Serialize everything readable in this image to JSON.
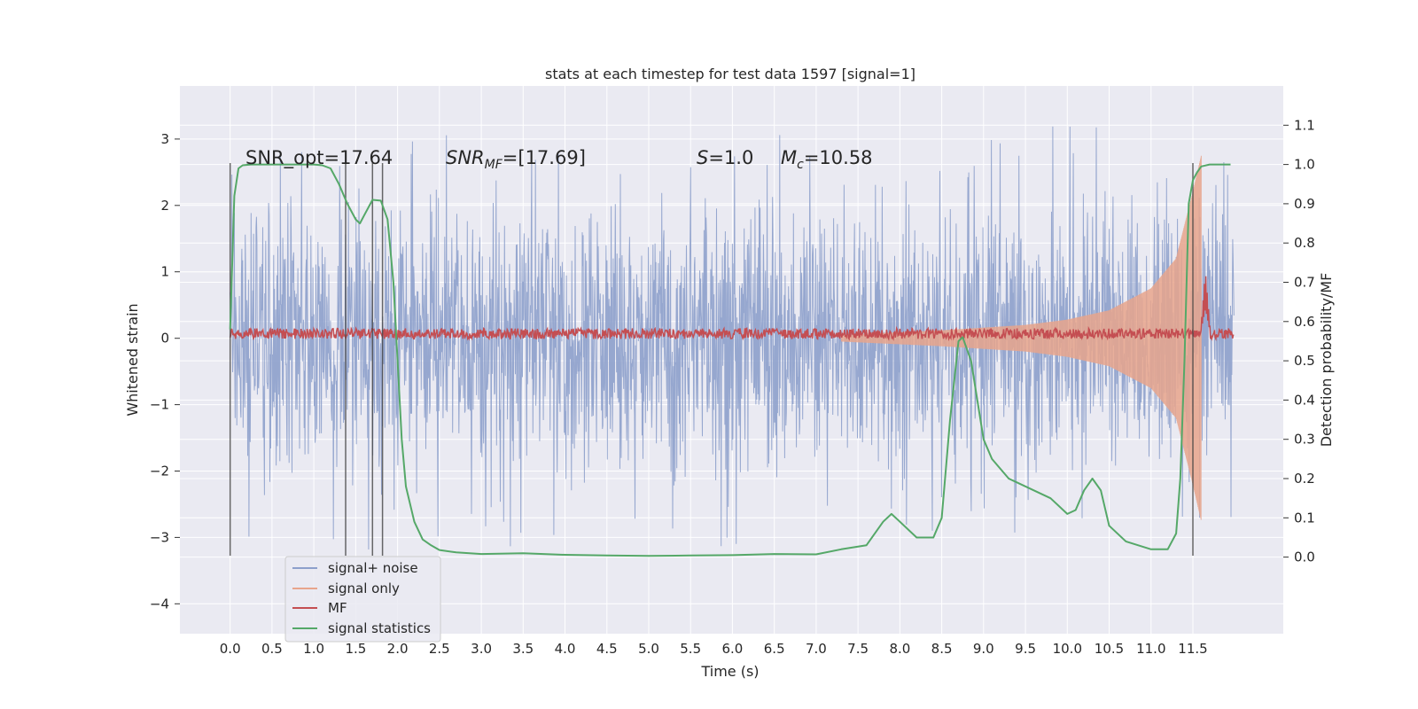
{
  "chart_data": {
    "type": "line",
    "title": "stats at each timestep for test data 1597 [signal=1]",
    "xlabel": "Time (s)",
    "ylabel_left": "Whitened strain",
    "ylabel_right": "Detection probability/MF",
    "xlim": [
      -0.6,
      12.58
    ],
    "ylim_left": [
      -4.45,
      3.8
    ],
    "ylim_right": [
      -0.195,
      1.2
    ],
    "x_ticks": [
      "0.0",
      "0.5",
      "1.0",
      "1.5",
      "2.0",
      "2.5",
      "3.0",
      "3.5",
      "4.0",
      "4.5",
      "5.0",
      "5.5",
      "6.0",
      "6.5",
      "7.0",
      "7.5",
      "8.0",
      "8.5",
      "9.0",
      "9.5",
      "10.0",
      "10.5",
      "11.0",
      "11.5"
    ],
    "y_ticks_left": [
      "3",
      "2",
      "1",
      "0",
      "−1",
      "−2",
      "−3",
      "−4"
    ],
    "y_ticks_right": [
      "1.1",
      "1.0",
      "0.9",
      "0.8",
      "0.7",
      "0.6",
      "0.5",
      "0.4",
      "0.3",
      "0.2",
      "0.1",
      "0.0"
    ],
    "grid": true,
    "annotations": {
      "snr_opt": "SNR_opt=17.64",
      "snr_mf_base": "SNR",
      "snr_mf_sub": "MF",
      "snr_mf_value": "=[17.69]",
      "s_var": "S",
      "s_value": "=1.0",
      "mc_var": "M",
      "mc_sub": "c",
      "mc_value": "=10.58"
    },
    "legend": {
      "position": "lower-left",
      "entries": [
        {
          "label": "signal+ noise",
          "color": "#8da0cb"
        },
        {
          "label": "signal only",
          "color": "#e8a58c"
        },
        {
          "label": "MF",
          "color": "#c44e52"
        },
        {
          "label": "signal statistics",
          "color": "#55a868"
        }
      ]
    },
    "vertical_markers_x": [
      0.0,
      1.38,
      1.7,
      1.82,
      11.5
    ],
    "series": [
      {
        "name": "signal+ noise",
        "axis": "left",
        "color": "#8da0cb",
        "x_range": [
          0.0,
          11.99
        ],
        "typical_range": [
          -1.5,
          1.5
        ],
        "extremes": {
          "max": 3.45,
          "min": -4.08
        }
      },
      {
        "name": "signal only",
        "axis": "left",
        "color": "#e8a58c",
        "x_start": 7.3,
        "x_end": 11.6,
        "amplitude_x": [
          7.3,
          8.5,
          9.5,
          10.0,
          10.5,
          11.0,
          11.3,
          11.5,
          11.6
        ],
        "amplitude_y": [
          0.05,
          0.12,
          0.2,
          0.28,
          0.42,
          0.75,
          1.2,
          2.2,
          2.75
        ]
      },
      {
        "name": "MF",
        "axis": "left",
        "color": "#c44e52",
        "x_range": [
          0.0,
          11.99
        ],
        "level": 0.07,
        "band": 0.08,
        "peak": {
          "x": 11.65,
          "y": 1.0
        }
      },
      {
        "name": "signal statistics",
        "axis": "right",
        "color": "#55a868",
        "x": [
          0.0,
          0.05,
          0.1,
          0.15,
          0.25,
          0.5,
          0.8,
          1.0,
          1.1,
          1.2,
          1.3,
          1.4,
          1.5,
          1.55,
          1.6,
          1.7,
          1.8,
          1.88,
          1.95,
          2.0,
          2.05,
          2.1,
          2.2,
          2.3,
          2.4,
          2.5,
          2.7,
          3.0,
          3.5,
          4.0,
          4.5,
          5.0,
          5.5,
          6.0,
          6.5,
          7.0,
          7.3,
          7.6,
          7.8,
          7.9,
          8.0,
          8.2,
          8.4,
          8.5,
          8.6,
          8.7,
          8.75,
          8.85,
          9.0,
          9.1,
          9.3,
          9.6,
          9.8,
          10.0,
          10.1,
          10.2,
          10.3,
          10.4,
          10.5,
          10.7,
          11.0,
          11.2,
          11.3,
          11.35,
          11.4,
          11.45,
          11.5,
          11.55,
          11.6,
          11.7,
          11.8,
          11.95
        ],
        "y": [
          0.58,
          0.92,
          0.99,
          0.998,
          1.0,
          1.0,
          1.0,
          1.0,
          0.998,
          0.99,
          0.95,
          0.9,
          0.86,
          0.85,
          0.87,
          0.91,
          0.908,
          0.86,
          0.7,
          0.5,
          0.3,
          0.18,
          0.09,
          0.045,
          0.03,
          0.018,
          0.012,
          0.008,
          0.01,
          0.006,
          0.004,
          0.003,
          0.004,
          0.005,
          0.008,
          0.007,
          0.02,
          0.03,
          0.09,
          0.11,
          0.09,
          0.05,
          0.05,
          0.1,
          0.35,
          0.55,
          0.56,
          0.5,
          0.3,
          0.25,
          0.2,
          0.17,
          0.15,
          0.11,
          0.12,
          0.17,
          0.2,
          0.17,
          0.08,
          0.04,
          0.02,
          0.02,
          0.06,
          0.2,
          0.5,
          0.9,
          0.96,
          0.98,
          0.995,
          1.0,
          1.0,
          1.0
        ]
      }
    ]
  }
}
